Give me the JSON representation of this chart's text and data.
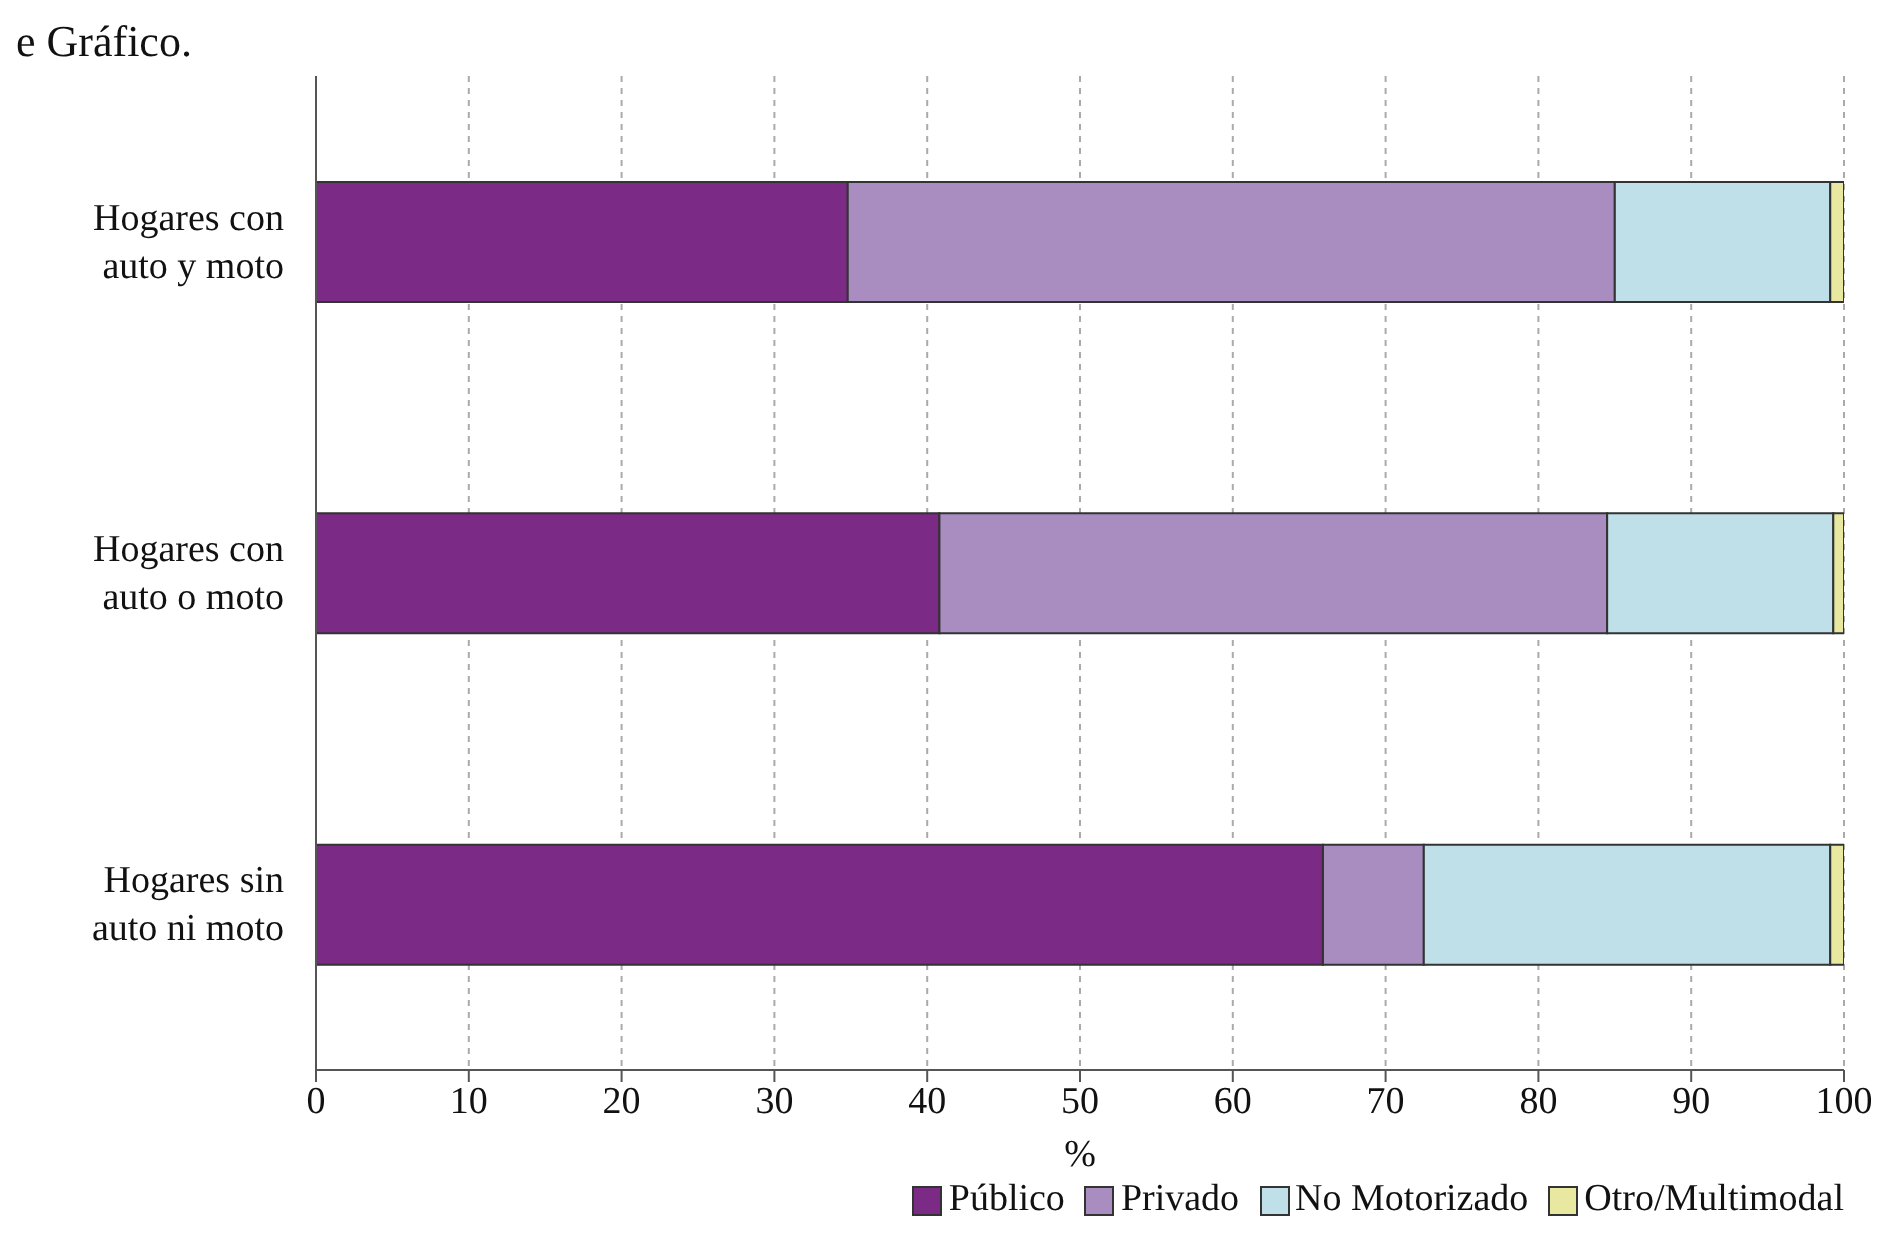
{
  "chart_data": {
    "type": "bar",
    "orientation": "horizontal",
    "stacked": true,
    "annotations": [
      "e Gráfico."
    ],
    "xlabel": "%",
    "categories": [
      "Hogares con auto y moto",
      "Hogares con auto o moto",
      "Hogares sin auto ni moto"
    ],
    "series": [
      {
        "name": "Público",
        "color": "#7b2a86",
        "values": [
          34.8,
          40.8,
          65.9
        ]
      },
      {
        "name": "Privado",
        "color": "#a98cc0",
        "values": [
          50.2,
          43.7,
          6.6
        ]
      },
      {
        "name": "No Motorizado",
        "color": "#bfe0e8",
        "values": [
          14.1,
          14.8,
          26.6
        ]
      },
      {
        "name": "Otro/Multimodal",
        "color": "#e8e8a0",
        "values": [
          0.9,
          0.7,
          0.9
        ]
      }
    ],
    "xlim": [
      0,
      100
    ],
    "xticks": [
      0,
      10,
      20,
      30,
      40,
      50,
      60,
      70,
      80,
      90,
      100
    ],
    "grid": "x",
    "legend": "bottom right"
  }
}
